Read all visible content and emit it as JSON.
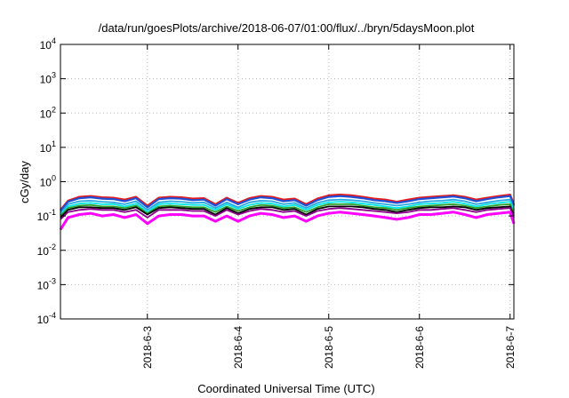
{
  "chart_data": {
    "type": "line",
    "title": "/data/run/goesPlots/archive/2018-06-07/01:00/flux/../bryn/5daysMoon.plot",
    "xlabel": "Coordinated Universal Time (UTC)",
    "ylabel": "cGy/day",
    "yscale": "log",
    "ylim": [
      0.0001,
      10000
    ],
    "xlim": [
      "2018-06-02T01:00",
      "2018-06-07T01:00"
    ],
    "grid": true,
    "legend": "none",
    "y_ticks": [
      {
        "value": 0.0001,
        "base": "10",
        "exp": "-4"
      },
      {
        "value": 0.001,
        "base": "10",
        "exp": "-3"
      },
      {
        "value": 0.01,
        "base": "10",
        "exp": "-2"
      },
      {
        "value": 0.1,
        "base": "10",
        "exp": "-1"
      },
      {
        "value": 1,
        "base": "10",
        "exp": "0"
      },
      {
        "value": 10,
        "base": "10",
        "exp": "1"
      },
      {
        "value": 100,
        "base": "10",
        "exp": "2"
      },
      {
        "value": 1000,
        "base": "10",
        "exp": "3"
      },
      {
        "value": 10000,
        "base": "10",
        "exp": "4"
      }
    ],
    "x_ticks": [
      {
        "value": "2018-06-03T00:00",
        "label": "2018-6-3"
      },
      {
        "value": "2018-06-04T00:00",
        "label": "2018-6-4"
      },
      {
        "value": "2018-06-05T00:00",
        "label": "2018-6-5"
      },
      {
        "value": "2018-06-06T00:00",
        "label": "2018-6-6"
      },
      {
        "value": "2018-06-07T00:00",
        "label": "2018-6-7"
      }
    ],
    "x": [
      "2018-06-02T01:00",
      "2018-06-02T03:00",
      "2018-06-02T06:00",
      "2018-06-02T09:00",
      "2018-06-02T12:00",
      "2018-06-02T15:00",
      "2018-06-02T18:00",
      "2018-06-02T21:00",
      "2018-06-03T00:00",
      "2018-06-03T03:00",
      "2018-06-03T06:00",
      "2018-06-03T09:00",
      "2018-06-03T12:00",
      "2018-06-03T15:00",
      "2018-06-03T18:00",
      "2018-06-03T21:00",
      "2018-06-04T00:00",
      "2018-06-04T03:00",
      "2018-06-04T06:00",
      "2018-06-04T09:00",
      "2018-06-04T12:00",
      "2018-06-04T15:00",
      "2018-06-04T18:00",
      "2018-06-04T21:00",
      "2018-06-05T00:00",
      "2018-06-05T03:00",
      "2018-06-05T06:00",
      "2018-06-05T09:00",
      "2018-06-05T12:00",
      "2018-06-05T15:00",
      "2018-06-05T18:00",
      "2018-06-05T21:00",
      "2018-06-06T00:00",
      "2018-06-06T03:00",
      "2018-06-06T06:00",
      "2018-06-06T09:00",
      "2018-06-06T12:00",
      "2018-06-06T15:00",
      "2018-06-06T18:00",
      "2018-06-06T21:00",
      "2018-06-07T00:00",
      "2018-06-07T01:00"
    ],
    "series": [
      {
        "color": "#e41a1c",
        "values": [
          0.15,
          0.28,
          0.36,
          0.38,
          0.35,
          0.34,
          0.3,
          0.36,
          0.2,
          0.34,
          0.36,
          0.35,
          0.32,
          0.33,
          0.22,
          0.34,
          0.24,
          0.33,
          0.38,
          0.36,
          0.3,
          0.32,
          0.22,
          0.32,
          0.4,
          0.42,
          0.4,
          0.36,
          0.32,
          0.3,
          0.26,
          0.3,
          0.34,
          0.36,
          0.38,
          0.4,
          0.36,
          0.3,
          0.34,
          0.38,
          0.42,
          0.22
        ]
      },
      {
        "color": "#1f4fd6",
        "values": [
          0.14,
          0.26,
          0.33,
          0.35,
          0.32,
          0.31,
          0.27,
          0.33,
          0.18,
          0.31,
          0.33,
          0.32,
          0.29,
          0.3,
          0.2,
          0.31,
          0.22,
          0.3,
          0.35,
          0.33,
          0.27,
          0.29,
          0.2,
          0.29,
          0.36,
          0.38,
          0.36,
          0.33,
          0.29,
          0.27,
          0.24,
          0.27,
          0.31,
          0.33,
          0.35,
          0.37,
          0.33,
          0.27,
          0.31,
          0.35,
          0.38,
          0.2
        ]
      },
      {
        "color": "#2aa7e0",
        "values": [
          0.12,
          0.22,
          0.27,
          0.28,
          0.26,
          0.25,
          0.22,
          0.27,
          0.15,
          0.25,
          0.27,
          0.26,
          0.24,
          0.25,
          0.17,
          0.25,
          0.18,
          0.25,
          0.28,
          0.27,
          0.22,
          0.24,
          0.17,
          0.24,
          0.29,
          0.3,
          0.29,
          0.27,
          0.24,
          0.22,
          0.2,
          0.22,
          0.25,
          0.27,
          0.28,
          0.3,
          0.27,
          0.22,
          0.25,
          0.28,
          0.3,
          0.16
        ]
      },
      {
        "color": "#00e5e5",
        "values": [
          0.11,
          0.19,
          0.23,
          0.24,
          0.22,
          0.22,
          0.19,
          0.23,
          0.13,
          0.22,
          0.23,
          0.22,
          0.21,
          0.21,
          0.15,
          0.22,
          0.16,
          0.21,
          0.24,
          0.23,
          0.19,
          0.21,
          0.15,
          0.21,
          0.25,
          0.26,
          0.25,
          0.23,
          0.21,
          0.19,
          0.17,
          0.19,
          0.22,
          0.23,
          0.24,
          0.26,
          0.23,
          0.19,
          0.22,
          0.24,
          0.26,
          0.14
        ]
      },
      {
        "color": "#2ca02c",
        "values": [
          0.1,
          0.17,
          0.2,
          0.21,
          0.19,
          0.19,
          0.17,
          0.2,
          0.12,
          0.19,
          0.2,
          0.19,
          0.18,
          0.18,
          0.13,
          0.19,
          0.14,
          0.18,
          0.21,
          0.2,
          0.17,
          0.18,
          0.13,
          0.18,
          0.22,
          0.22,
          0.22,
          0.2,
          0.18,
          0.17,
          0.15,
          0.17,
          0.19,
          0.2,
          0.21,
          0.22,
          0.2,
          0.17,
          0.19,
          0.21,
          0.22,
          0.12
        ]
      },
      {
        "color": "#000000",
        "values": [
          0.09,
          0.15,
          0.18,
          0.18,
          0.17,
          0.17,
          0.15,
          0.18,
          0.11,
          0.17,
          0.18,
          0.17,
          0.16,
          0.16,
          0.11,
          0.17,
          0.12,
          0.16,
          0.18,
          0.18,
          0.15,
          0.16,
          0.11,
          0.16,
          0.19,
          0.19,
          0.19,
          0.18,
          0.16,
          0.15,
          0.13,
          0.15,
          0.17,
          0.18,
          0.18,
          0.19,
          0.18,
          0.15,
          0.17,
          0.18,
          0.19,
          0.1
        ]
      },
      {
        "color": "#8b008b",
        "values": [
          0.08,
          0.13,
          0.15,
          0.16,
          0.15,
          0.15,
          0.13,
          0.15,
          0.09,
          0.15,
          0.15,
          0.15,
          0.14,
          0.14,
          0.1,
          0.15,
          0.11,
          0.14,
          0.16,
          0.15,
          0.13,
          0.14,
          0.1,
          0.14,
          0.16,
          0.17,
          0.16,
          0.15,
          0.14,
          0.13,
          0.12,
          0.13,
          0.15,
          0.15,
          0.16,
          0.17,
          0.15,
          0.13,
          0.15,
          0.16,
          0.17,
          0.09
        ]
      },
      {
        "color": "#ff00ff",
        "values": [
          0.04,
          0.09,
          0.11,
          0.12,
          0.1,
          0.11,
          0.09,
          0.11,
          0.06,
          0.1,
          0.11,
          0.11,
          0.1,
          0.1,
          0.07,
          0.1,
          0.07,
          0.1,
          0.12,
          0.11,
          0.09,
          0.1,
          0.07,
          0.1,
          0.12,
          0.13,
          0.12,
          0.11,
          0.1,
          0.09,
          0.08,
          0.09,
          0.11,
          0.11,
          0.12,
          0.13,
          0.11,
          0.09,
          0.11,
          0.12,
          0.13,
          0.06
        ]
      }
    ]
  }
}
